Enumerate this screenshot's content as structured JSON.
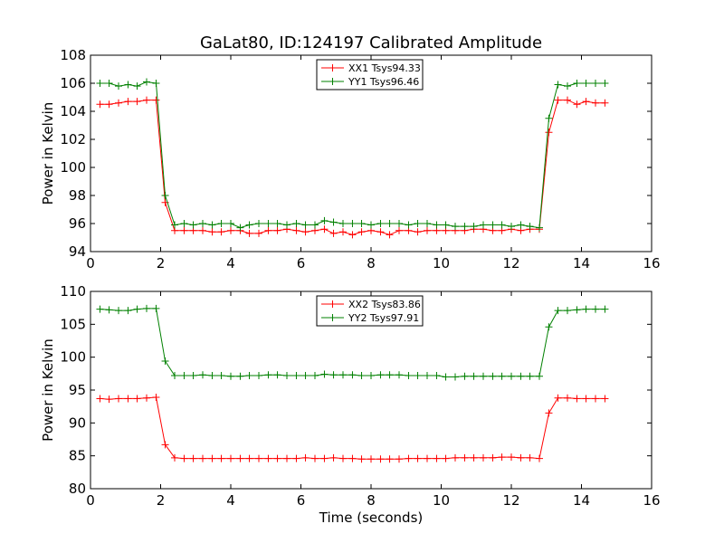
{
  "figure_title": "GaLat80, ID:124197 Calibrated Amplitude",
  "chart_data": [
    {
      "type": "line",
      "xlabel": "",
      "ylabel": "Power in Kelvin",
      "xlim": [
        0,
        16
      ],
      "ylim": [
        94,
        108
      ],
      "xticks": [
        0,
        2,
        4,
        6,
        8,
        10,
        12,
        14,
        16
      ],
      "yticks": [
        94,
        96,
        98,
        100,
        102,
        104,
        106,
        108
      ],
      "legend_position": "top-center",
      "x": [
        0.27,
        0.53,
        0.8,
        1.07,
        1.33,
        1.6,
        1.87,
        2.13,
        2.4,
        2.67,
        2.93,
        3.2,
        3.47,
        3.73,
        4.0,
        4.27,
        4.53,
        4.8,
        5.07,
        5.33,
        5.6,
        5.87,
        6.13,
        6.4,
        6.67,
        6.93,
        7.2,
        7.47,
        7.73,
        8.0,
        8.27,
        8.53,
        8.8,
        9.07,
        9.33,
        9.6,
        9.87,
        10.13,
        10.4,
        10.67,
        10.93,
        11.2,
        11.47,
        11.73,
        12.0,
        12.27,
        12.53,
        12.8,
        13.07,
        13.33,
        13.6,
        13.87,
        14.13,
        14.4,
        14.67
      ],
      "series": [
        {
          "name": "XX1",
          "legend_label": "XX1 Tsys94.33",
          "color": "#ff0000",
          "values": [
            104.5,
            104.5,
            104.6,
            104.7,
            104.7,
            104.8,
            104.8,
            97.5,
            95.5,
            95.5,
            95.5,
            95.5,
            95.4,
            95.4,
            95.5,
            95.5,
            95.3,
            95.3,
            95.5,
            95.5,
            95.6,
            95.5,
            95.4,
            95.5,
            95.6,
            95.3,
            95.4,
            95.2,
            95.4,
            95.5,
            95.4,
            95.2,
            95.5,
            95.5,
            95.4,
            95.5,
            95.5,
            95.5,
            95.5,
            95.5,
            95.6,
            95.6,
            95.5,
            95.5,
            95.6,
            95.5,
            95.6,
            95.6,
            102.5,
            104.8,
            104.8,
            104.5,
            104.7,
            104.6,
            104.6
          ]
        },
        {
          "name": "YY1",
          "legend_label": "YY1 Tsys96.46",
          "color": "#008000",
          "values": [
            106.0,
            106.0,
            105.8,
            105.9,
            105.8,
            106.1,
            106.0,
            98.0,
            95.9,
            96.0,
            95.9,
            96.0,
            95.9,
            96.0,
            96.0,
            95.7,
            95.9,
            96.0,
            96.0,
            96.0,
            95.9,
            96.0,
            95.9,
            95.9,
            96.2,
            96.1,
            96.0,
            96.0,
            96.0,
            95.9,
            96.0,
            96.0,
            96.0,
            95.9,
            96.0,
            96.0,
            95.9,
            95.9,
            95.8,
            95.8,
            95.8,
            95.9,
            95.9,
            95.9,
            95.8,
            95.9,
            95.8,
            95.7,
            103.5,
            105.9,
            105.8,
            106.0,
            106.0,
            106.0,
            106.0
          ]
        }
      ]
    },
    {
      "type": "line",
      "xlabel": "Time (seconds)",
      "ylabel": "Power in Kelvin",
      "xlim": [
        0,
        16
      ],
      "ylim": [
        80,
        110
      ],
      "xticks": [
        0,
        2,
        4,
        6,
        8,
        10,
        12,
        14,
        16
      ],
      "yticks": [
        80,
        85,
        90,
        95,
        100,
        105,
        110
      ],
      "legend_position": "top-center",
      "x": [
        0.27,
        0.53,
        0.8,
        1.07,
        1.33,
        1.6,
        1.87,
        2.13,
        2.4,
        2.67,
        2.93,
        3.2,
        3.47,
        3.73,
        4.0,
        4.27,
        4.53,
        4.8,
        5.07,
        5.33,
        5.6,
        5.87,
        6.13,
        6.4,
        6.67,
        6.93,
        7.2,
        7.47,
        7.73,
        8.0,
        8.27,
        8.53,
        8.8,
        9.07,
        9.33,
        9.6,
        9.87,
        10.13,
        10.4,
        10.67,
        10.93,
        11.2,
        11.47,
        11.73,
        12.0,
        12.27,
        12.53,
        12.8,
        13.07,
        13.33,
        13.6,
        13.87,
        14.13,
        14.4,
        14.67
      ],
      "series": [
        {
          "name": "XX2",
          "legend_label": "XX2 Tsys83.86",
          "color": "#ff0000",
          "values": [
            93.7,
            93.6,
            93.7,
            93.7,
            93.7,
            93.8,
            93.9,
            86.7,
            84.7,
            84.6,
            84.6,
            84.6,
            84.6,
            84.6,
            84.6,
            84.6,
            84.6,
            84.6,
            84.6,
            84.6,
            84.6,
            84.6,
            84.7,
            84.6,
            84.6,
            84.7,
            84.6,
            84.6,
            84.5,
            84.5,
            84.5,
            84.5,
            84.5,
            84.6,
            84.6,
            84.6,
            84.6,
            84.6,
            84.7,
            84.7,
            84.7,
            84.7,
            84.7,
            84.8,
            84.8,
            84.7,
            84.7,
            84.6,
            91.5,
            93.8,
            93.8,
            93.7,
            93.7,
            93.7,
            93.7
          ]
        },
        {
          "name": "YY2",
          "legend_label": "YY2 Tsys97.91",
          "color": "#008000",
          "values": [
            107.3,
            107.2,
            107.1,
            107.1,
            107.3,
            107.4,
            107.4,
            99.4,
            97.2,
            97.2,
            97.2,
            97.3,
            97.2,
            97.2,
            97.1,
            97.1,
            97.2,
            97.2,
            97.3,
            97.3,
            97.2,
            97.2,
            97.2,
            97.2,
            97.4,
            97.3,
            97.3,
            97.3,
            97.2,
            97.2,
            97.3,
            97.3,
            97.3,
            97.2,
            97.2,
            97.2,
            97.2,
            97.0,
            97.0,
            97.1,
            97.1,
            97.1,
            97.1,
            97.1,
            97.1,
            97.1,
            97.1,
            97.1,
            104.6,
            107.1,
            107.1,
            107.2,
            107.3,
            107.3,
            107.3
          ]
        }
      ]
    }
  ]
}
